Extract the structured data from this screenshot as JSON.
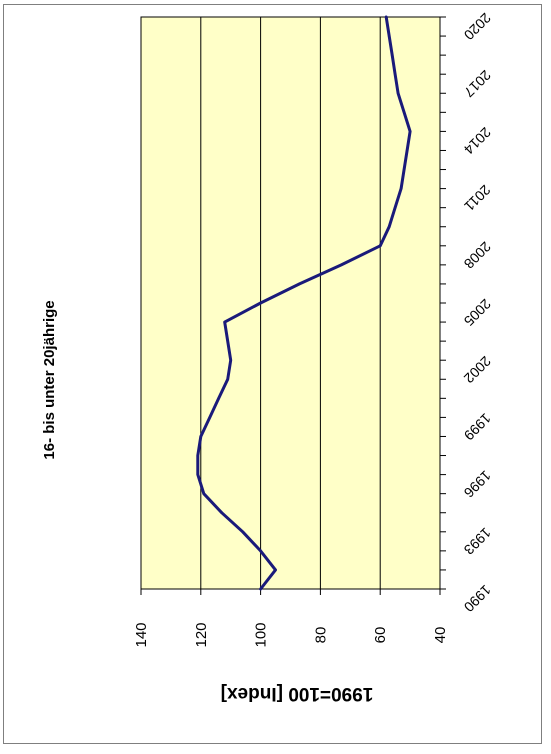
{
  "chart_data": {
    "type": "line",
    "title": "16- bis unter 20jährige",
    "ylabel": "1990=100 [Index]",
    "xlabel": "",
    "ylim": [
      40,
      140
    ],
    "yticks": [
      "40",
      "60",
      "80",
      "100",
      "120",
      "140"
    ],
    "grid": true,
    "x": [
      1990,
      1991,
      1992,
      1993,
      1994,
      1995,
      1996,
      1997,
      1998,
      1999,
      2000,
      2001,
      2002,
      2003,
      2004,
      2005,
      2006,
      2007,
      2008,
      2009,
      2010,
      2011,
      2012,
      2013,
      2014,
      2015,
      2016,
      2017,
      2018,
      2019,
      2020
    ],
    "xticks": [
      "1990",
      "1993",
      "1996",
      "1999",
      "2002",
      "2005",
      "2008",
      "2011",
      "2014",
      "2017",
      "2020"
    ],
    "series": [
      {
        "color": "#1a1a7a",
        "values": [
          100,
          95,
          100,
          106,
          113,
          119,
          121,
          121,
          120,
          117,
          114,
          111,
          110,
          111,
          112,
          100,
          87,
          73,
          60,
          57,
          55,
          53,
          52,
          51,
          50,
          52,
          54,
          55,
          56,
          57,
          58
        ]
      }
    ]
  },
  "colors": {
    "plot_background": "#ffffc8",
    "line": "#1a1a7a",
    "grid": "#000000"
  }
}
